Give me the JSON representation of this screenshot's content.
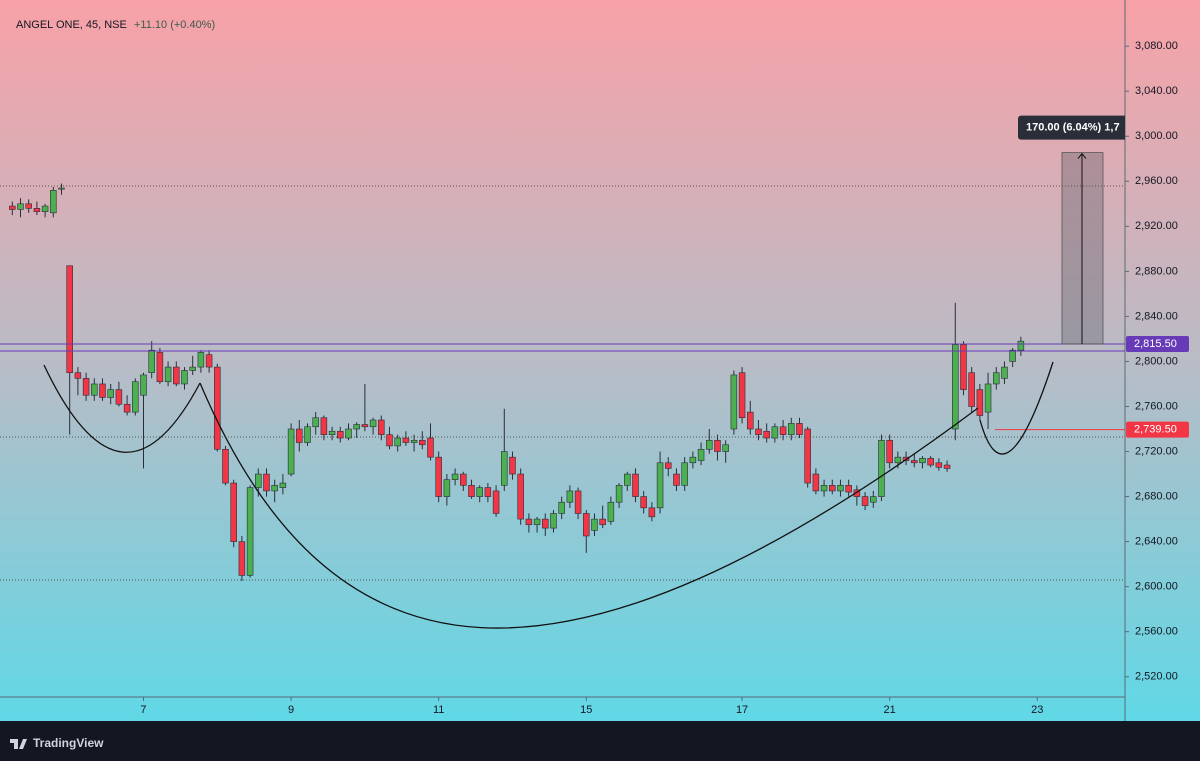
{
  "chart_data": {
    "type": "candlestick",
    "title": "ANGEL ONE, 45, NSE",
    "subtitle": "+11.10 (+0.40%)",
    "brand": "TradingView",
    "up_color": "#4caf50",
    "down_color": "#f23645",
    "candles": [
      [
        2938,
        2942,
        2930,
        2935
      ],
      [
        2935,
        2945,
        2928,
        2940
      ],
      [
        2940,
        2944,
        2932,
        2936
      ],
      [
        2936,
        2942,
        2930,
        2933
      ],
      [
        2933,
        2940,
        2928,
        2938
      ],
      [
        2932,
        2955,
        2928,
        2952
      ],
      [
        2953,
        2958,
        2948,
        2954
      ],
      [
        2885,
        2885,
        2735,
        2790
      ],
      [
        2790,
        2795,
        2770,
        2785
      ],
      [
        2785,
        2790,
        2765,
        2770
      ],
      [
        2770,
        2785,
        2765,
        2780
      ],
      [
        2780,
        2785,
        2765,
        2768
      ],
      [
        2768,
        2780,
        2762,
        2775
      ],
      [
        2775,
        2782,
        2760,
        2762
      ],
      [
        2762,
        2770,
        2752,
        2755
      ],
      [
        2755,
        2785,
        2752,
        2782
      ],
      [
        2770,
        2790,
        2705,
        2788
      ],
      [
        2790,
        2818,
        2785,
        2810
      ],
      [
        2808,
        2812,
        2780,
        2782
      ],
      [
        2782,
        2800,
        2778,
        2795
      ],
      [
        2795,
        2800,
        2778,
        2780
      ],
      [
        2780,
        2795,
        2775,
        2792
      ],
      [
        2792,
        2805,
        2788,
        2795
      ],
      [
        2795,
        2810,
        2790,
        2808
      ],
      [
        2806,
        2810,
        2790,
        2795
      ],
      [
        2795,
        2798,
        2720,
        2722
      ],
      [
        2722,
        2725,
        2690,
        2692
      ],
      [
        2692,
        2695,
        2635,
        2640
      ],
      [
        2640,
        2645,
        2605,
        2610
      ],
      [
        2610,
        2690,
        2608,
        2688
      ],
      [
        2688,
        2705,
        2680,
        2700
      ],
      [
        2700,
        2705,
        2680,
        2685
      ],
      [
        2685,
        2695,
        2675,
        2690
      ],
      [
        2688,
        2700,
        2682,
        2692
      ],
      [
        2700,
        2745,
        2698,
        2740
      ],
      [
        2740,
        2748,
        2720,
        2728
      ],
      [
        2728,
        2745,
        2725,
        2742
      ],
      [
        2742,
        2755,
        2735,
        2750
      ],
      [
        2750,
        2752,
        2730,
        2735
      ],
      [
        2735,
        2742,
        2730,
        2738
      ],
      [
        2738,
        2742,
        2728,
        2732
      ],
      [
        2732,
        2745,
        2730,
        2740
      ],
      [
        2740,
        2746,
        2732,
        2744
      ],
      [
        2744,
        2780,
        2738,
        2742
      ],
      [
        2742,
        2750,
        2735,
        2748
      ],
      [
        2748,
        2752,
        2730,
        2735
      ],
      [
        2735,
        2742,
        2722,
        2725
      ],
      [
        2725,
        2735,
        2720,
        2732
      ],
      [
        2732,
        2738,
        2725,
        2728
      ],
      [
        2728,
        2735,
        2720,
        2730
      ],
      [
        2730,
        2738,
        2722,
        2726
      ],
      [
        2732,
        2745,
        2712,
        2715
      ],
      [
        2715,
        2720,
        2675,
        2680
      ],
      [
        2680,
        2700,
        2672,
        2695
      ],
      [
        2695,
        2705,
        2690,
        2700
      ],
      [
        2700,
        2702,
        2685,
        2690
      ],
      [
        2690,
        2695,
        2678,
        2680
      ],
      [
        2680,
        2690,
        2675,
        2688
      ],
      [
        2688,
        2692,
        2675,
        2680
      ],
      [
        2685,
        2690,
        2662,
        2665
      ],
      [
        2690,
        2758,
        2685,
        2720
      ],
      [
        2715,
        2720,
        2695,
        2700
      ],
      [
        2700,
        2705,
        2655,
        2660
      ],
      [
        2660,
        2665,
        2648,
        2655
      ],
      [
        2655,
        2662,
        2648,
        2660
      ],
      [
        2660,
        2665,
        2645,
        2652
      ],
      [
        2652,
        2668,
        2648,
        2665
      ],
      [
        2665,
        2680,
        2660,
        2675
      ],
      [
        2675,
        2690,
        2670,
        2685
      ],
      [
        2685,
        2688,
        2660,
        2665
      ],
      [
        2665,
        2668,
        2630,
        2645
      ],
      [
        2650,
        2665,
        2645,
        2660
      ],
      [
        2660,
        2672,
        2652,
        2655
      ],
      [
        2658,
        2680,
        2655,
        2675
      ],
      [
        2675,
        2692,
        2670,
        2690
      ],
      [
        2690,
        2702,
        2685,
        2700
      ],
      [
        2700,
        2705,
        2675,
        2680
      ],
      [
        2680,
        2685,
        2665,
        2670
      ],
      [
        2670,
        2675,
        2658,
        2662
      ],
      [
        2670,
        2720,
        2665,
        2710
      ],
      [
        2710,
        2715,
        2698,
        2705
      ],
      [
        2700,
        2705,
        2685,
        2690
      ],
      [
        2690,
        2715,
        2685,
        2710
      ],
      [
        2710,
        2720,
        2705,
        2715
      ],
      [
        2712,
        2728,
        2708,
        2722
      ],
      [
        2722,
        2740,
        2718,
        2730
      ],
      [
        2730,
        2735,
        2712,
        2720
      ],
      [
        2720,
        2730,
        2710,
        2726
      ],
      [
        2740,
        2792,
        2735,
        2788
      ],
      [
        2790,
        2795,
        2745,
        2750
      ],
      [
        2755,
        2765,
        2735,
        2740
      ],
      [
        2740,
        2748,
        2730,
        2735
      ],
      [
        2738,
        2745,
        2728,
        2732
      ],
      [
        2732,
        2745,
        2728,
        2742
      ],
      [
        2742,
        2748,
        2730,
        2735
      ],
      [
        2735,
        2750,
        2730,
        2745
      ],
      [
        2745,
        2750,
        2732,
        2735
      ],
      [
        2740,
        2742,
        2688,
        2692
      ],
      [
        2700,
        2705,
        2682,
        2685
      ],
      [
        2685,
        2695,
        2680,
        2690
      ],
      [
        2690,
        2695,
        2682,
        2685
      ],
      [
        2685,
        2695,
        2680,
        2690
      ],
      [
        2690,
        2695,
        2680,
        2684
      ],
      [
        2686,
        2690,
        2672,
        2680
      ],
      [
        2680,
        2684,
        2668,
        2672
      ],
      [
        2675,
        2685,
        2670,
        2680
      ],
      [
        2680,
        2735,
        2676,
        2730
      ],
      [
        2730,
        2735,
        2705,
        2710
      ],
      [
        2710,
        2720,
        2705,
        2715
      ],
      [
        2715,
        2720,
        2708,
        2712
      ],
      [
        2712,
        2718,
        2706,
        2710
      ],
      [
        2710,
        2716,
        2705,
        2714
      ],
      [
        2714,
        2716,
        2706,
        2708
      ],
      [
        2710,
        2714,
        2703,
        2706
      ],
      [
        2708,
        2712,
        2702,
        2705
      ],
      [
        2740,
        2852,
        2730,
        2815
      ],
      [
        2815,
        2818,
        2770,
        2775
      ],
      [
        2790,
        2795,
        2755,
        2760
      ],
      [
        2775,
        2780,
        2748,
        2752
      ],
      [
        2755,
        2790,
        2740,
        2780
      ],
      [
        2780,
        2795,
        2775,
        2790
      ],
      [
        2785,
        2800,
        2780,
        2795
      ],
      [
        2800,
        2812,
        2795,
        2810
      ],
      [
        2810,
        2822,
        2805,
        2818
      ]
    ],
    "xlim": [
      -1.5,
      135.7
    ],
    "xticks": [
      {
        "value": 16,
        "label": "7"
      },
      {
        "value": 34,
        "label": "9"
      },
      {
        "value": 52,
        "label": "11"
      },
      {
        "value": 70,
        "label": "15"
      },
      {
        "value": 89,
        "label": "17"
      },
      {
        "value": 107,
        "label": "21"
      },
      {
        "value": 125,
        "label": "23"
      }
    ],
    "ylim": [
      2502,
      3121
    ],
    "yticks": [
      {
        "value": 2520,
        "label": "2,520.00"
      },
      {
        "value": 2560,
        "label": "2,560.00"
      },
      {
        "value": 2600,
        "label": "2,600.00"
      },
      {
        "value": 2640,
        "label": "2,640.00"
      },
      {
        "value": 2680,
        "label": "2,680.00"
      },
      {
        "value": 2720,
        "label": "2,720.00"
      },
      {
        "value": 2760,
        "label": "2,760.00"
      },
      {
        "value": 2800,
        "label": "2,800.00"
      },
      {
        "value": 2840,
        "label": "2,840.00"
      },
      {
        "value": 2880,
        "label": "2,880.00"
      },
      {
        "value": 2920,
        "label": "2,920.00"
      },
      {
        "value": 2960,
        "label": "2,960.00"
      },
      {
        "value": 3000,
        "label": "3,000.00"
      },
      {
        "value": 3040,
        "label": "3,040.00"
      },
      {
        "value": 3080,
        "label": "3,080.00"
      }
    ],
    "levels": [
      {
        "value": 2815.5,
        "label": "2,815.50",
        "color": "#673ab7"
      },
      {
        "value": 2739.5,
        "label": "2,739.50",
        "color": "#f23645"
      }
    ],
    "measure": {
      "from": 2815.5,
      "to": 2985.5,
      "label": "170.00 (6.04%) 1,7"
    }
  }
}
